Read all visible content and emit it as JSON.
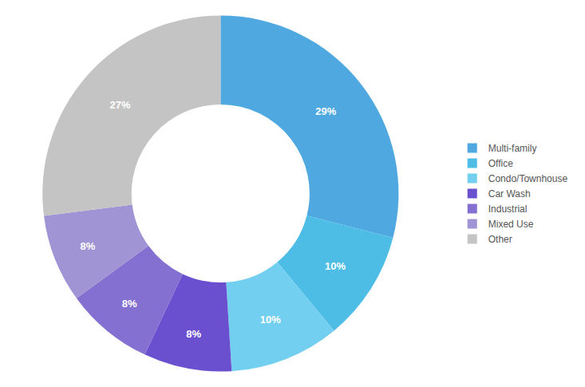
{
  "chart_data": {
    "type": "pie",
    "categories": [
      "Multi-family",
      "Office",
      "Condo/Townhouse",
      "Car Wash",
      "Industrial",
      "Mixed Use",
      "Other"
    ],
    "values": [
      29,
      10,
      10,
      8,
      8,
      8,
      27
    ],
    "value_labels": [
      "29%",
      "10%",
      "10%",
      "8%",
      "8%",
      "8%",
      "27%"
    ],
    "colors": [
      "#4fa9e0",
      "#4dbde6",
      "#73cff0",
      "#6a4fcf",
      "#8470d0",
      "#a194d4",
      "#c4c4c4"
    ],
    "data_labels": true,
    "legend": "right"
  }
}
